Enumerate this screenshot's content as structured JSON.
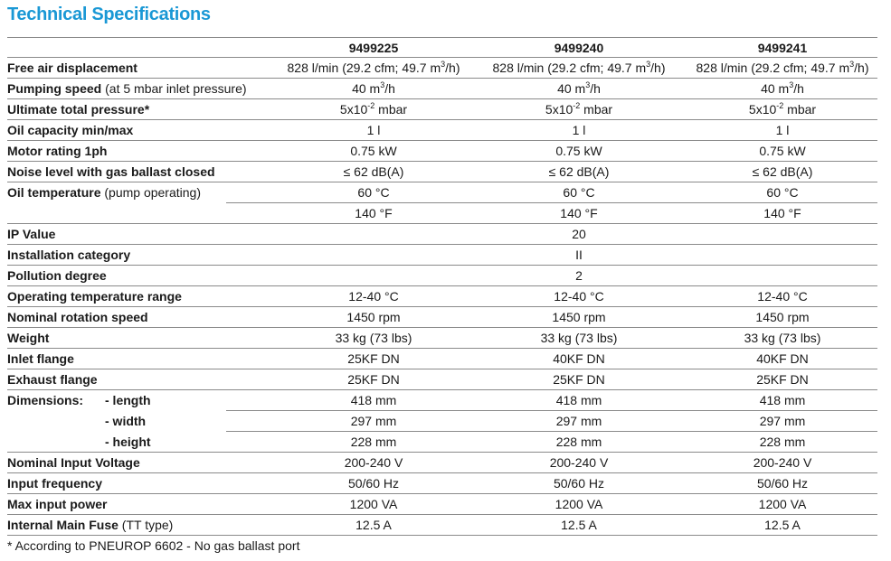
{
  "title": "Technical Specifications",
  "models": [
    "9499225",
    "9499240",
    "9499241"
  ],
  "rows": [
    {
      "label": "Free air displacement",
      "note": "",
      "values": [
        {
          "text": "828 l/min (29.2 cfm; 49.7 m",
          "sup": "3",
          "rest": "/h)"
        },
        {
          "text": "828 l/min (29.2 cfm; 49.7 m",
          "sup": "3",
          "rest": "/h)"
        },
        {
          "text": "828 l/min (29.2 cfm; 49.7 m",
          "sup": "3",
          "rest": "/h)"
        }
      ]
    },
    {
      "label": "Pumping speed",
      "note": " (at 5 mbar inlet pressure)",
      "values": [
        {
          "text": "40 m",
          "sup": "3",
          "rest": "/h"
        },
        {
          "text": "40 m",
          "sup": "3",
          "rest": "/h"
        },
        {
          "text": "40 m",
          "sup": "3",
          "rest": "/h"
        }
      ]
    },
    {
      "label": "Ultimate total pressure*",
      "note": "",
      "values": [
        {
          "text": "5x10",
          "sup": "-2",
          "rest": " mbar"
        },
        {
          "text": "5x10",
          "sup": "-2",
          "rest": " mbar"
        },
        {
          "text": "5x10",
          "sup": "-2",
          "rest": " mbar"
        }
      ]
    },
    {
      "label": "Oil capacity min/max",
      "note": "",
      "values": [
        {
          "text": "1 l"
        },
        {
          "text": "1 l"
        },
        {
          "text": "1 l"
        }
      ]
    },
    {
      "label": "Motor rating 1ph",
      "note": "",
      "values": [
        {
          "text": "0.75 kW"
        },
        {
          "text": "0.75 kW"
        },
        {
          "text": "0.75 kW"
        }
      ]
    },
    {
      "label": "Noise level with gas ballast closed",
      "note": "",
      "values": [
        {
          "text": "≤ 62 dB(A)"
        },
        {
          "text": "≤ 62 dB(A)"
        },
        {
          "text": "≤ 62 dB(A)"
        }
      ]
    },
    {
      "label": "Oil temperature",
      "note": " (pump operating)",
      "values": [
        {
          "text": "60 °C"
        },
        {
          "text": "60 °C"
        },
        {
          "text": "60 °C"
        }
      ]
    },
    {
      "label": "",
      "note": "",
      "sub": true,
      "values": [
        {
          "text": "140 °F"
        },
        {
          "text": "140 °F"
        },
        {
          "text": "140 °F"
        }
      ]
    },
    {
      "label": "IP Value",
      "note": "",
      "span": "20"
    },
    {
      "label": "Installation category",
      "note": "",
      "span": "II"
    },
    {
      "label": "Pollution degree",
      "note": "",
      "span": "2"
    },
    {
      "label": "Operating temperature range",
      "note": "",
      "values": [
        {
          "text": "12-40 °C"
        },
        {
          "text": "12-40 °C"
        },
        {
          "text": "12-40 °C"
        }
      ]
    },
    {
      "label": "Nominal rotation speed",
      "note": "",
      "values": [
        {
          "text": "1450 rpm"
        },
        {
          "text": "1450 rpm"
        },
        {
          "text": "1450 rpm"
        }
      ]
    },
    {
      "label": "Weight",
      "note": "",
      "values": [
        {
          "text": "33 kg (73 lbs)"
        },
        {
          "text": "33 kg (73 lbs)"
        },
        {
          "text": "33 kg (73 lbs)"
        }
      ]
    },
    {
      "label": "Inlet flange",
      "note": "",
      "values": [
        {
          "text": "25KF DN"
        },
        {
          "text": "40KF DN"
        },
        {
          "text": "40KF DN"
        }
      ]
    },
    {
      "label": "Exhaust flange",
      "note": "",
      "values": [
        {
          "text": "25KF DN"
        },
        {
          "text": "25KF DN"
        },
        {
          "text": "25KF DN"
        }
      ]
    },
    {
      "label": "Dimensions:",
      "sublabel": "- length",
      "note": "",
      "subline": true,
      "values": [
        {
          "text": "418 mm"
        },
        {
          "text": "418 mm"
        },
        {
          "text": "418 mm"
        }
      ]
    },
    {
      "label": "",
      "sublabel": "- width",
      "note": "",
      "sub": true,
      "values": [
        {
          "text": "297 mm"
        },
        {
          "text": "297 mm"
        },
        {
          "text": "297 mm"
        }
      ]
    },
    {
      "label": "",
      "sublabel": "- height",
      "note": "",
      "values": [
        {
          "text": "228 mm"
        },
        {
          "text": "228 mm"
        },
        {
          "text": "228 mm"
        }
      ]
    },
    {
      "label": "Nominal Input Voltage",
      "note": "",
      "values": [
        {
          "text": "200-240 V"
        },
        {
          "text": "200-240 V"
        },
        {
          "text": "200-240 V"
        }
      ]
    },
    {
      "label": "Input frequency",
      "note": "",
      "values": [
        {
          "text": "50/60 Hz"
        },
        {
          "text": "50/60 Hz"
        },
        {
          "text": "50/60 Hz"
        }
      ]
    },
    {
      "label": "Max input power",
      "note": "",
      "values": [
        {
          "text": "1200 VA"
        },
        {
          "text": "1200 VA"
        },
        {
          "text": "1200 VA"
        }
      ]
    },
    {
      "label": "Internal Main Fuse",
      "note": " (TT type)",
      "values": [
        {
          "text": "12.5 A"
        },
        {
          "text": "12.5 A"
        },
        {
          "text": "12.5 A"
        }
      ]
    }
  ],
  "footnote": "* According to PNEUROP 6602 - No gas ballast port"
}
